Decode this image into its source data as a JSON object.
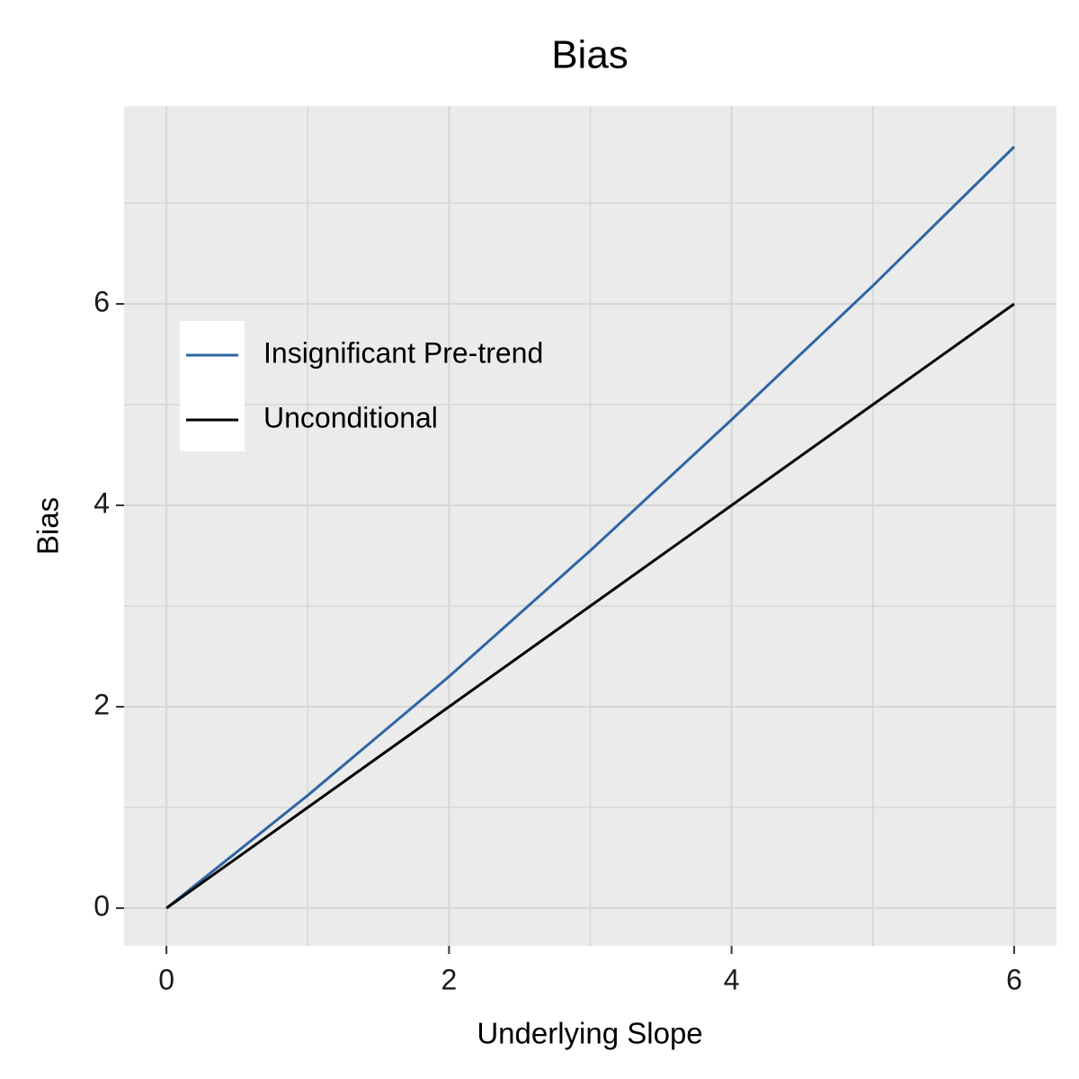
{
  "chart_data": {
    "type": "line",
    "title": "Bias",
    "x_label": "Underlying Slope",
    "y_label": "Bias",
    "x": [
      0,
      1,
      2,
      3,
      4,
      5,
      6
    ],
    "series": [
      {
        "name": "Insignificant Pre-trend",
        "color": "#2e66a3",
        "values": [
          0,
          1.12,
          2.3,
          3.55,
          4.85,
          6.18,
          7.56
        ]
      },
      {
        "name": "Unconditional",
        "color": "#000000",
        "values": [
          0,
          1,
          2,
          3,
          4,
          5,
          6
        ]
      }
    ],
    "xlim": [
      -0.3,
      6.3
    ],
    "ylim": [
      -0.375,
      7.964
    ],
    "xticks": [
      0,
      2,
      4,
      6
    ],
    "yticks": [
      0,
      2,
      4,
      6
    ],
    "grid": true,
    "legend_position": "top-left"
  }
}
